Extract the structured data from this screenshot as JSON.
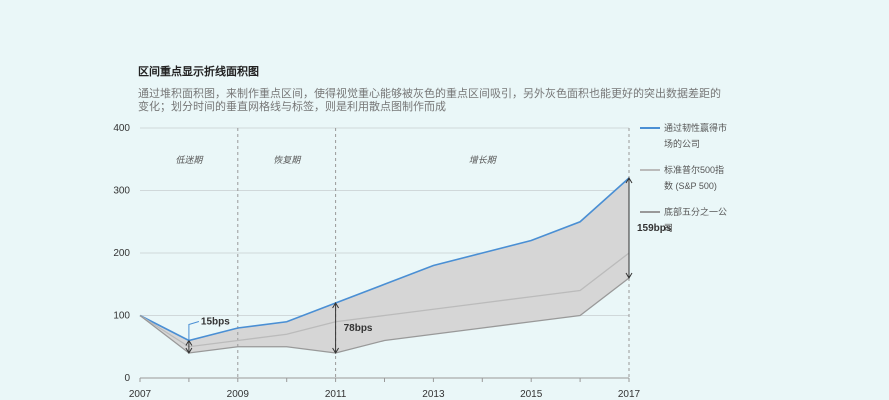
{
  "page": {
    "title": "区间重点显示折线面积图",
    "subtitle": "通过堆积面积图，来制作重点区间，使得视觉重心能够被灰色的重点区间吸引，另外灰色面积也能更好的突出数据差距的变化；划分时间的垂直网格线与标签，则是利用散点图制作而成"
  },
  "chart_data": {
    "type": "area",
    "x": [
      2007,
      2008,
      2009,
      2010,
      2011,
      2012,
      2013,
      2014,
      2015,
      2016,
      2017
    ],
    "xticks": [
      "2007",
      "2009",
      "2011",
      "2013",
      "2015",
      "2017"
    ],
    "yticks": [
      "0",
      "100",
      "200",
      "300",
      "400"
    ],
    "xlim": [
      2007,
      2017
    ],
    "ylim": [
      0,
      400
    ],
    "grid": true,
    "legend": "right",
    "series": [
      {
        "name": "通过韧性赢得市场的公司",
        "color": "#4a8fd4",
        "values": [
          100,
          60,
          80,
          90,
          120,
          150,
          180,
          200,
          220,
          250,
          320
        ]
      },
      {
        "name": "标准普尔500指数 (S&P 500)",
        "color": "#bbbbbb",
        "values": [
          100,
          50,
          60,
          70,
          90,
          100,
          110,
          120,
          130,
          140,
          200
        ]
      },
      {
        "name": "底部五分之一公司",
        "color": "#999999",
        "values": [
          100,
          40,
          50,
          50,
          40,
          60,
          70,
          80,
          90,
          100,
          160
        ]
      }
    ],
    "phases": [
      {
        "label": "低迷期",
        "start": 2007,
        "end": 2009
      },
      {
        "label": "恢复期",
        "start": 2009,
        "end": 2011
      },
      {
        "label": "增长期",
        "start": 2011,
        "end": 2017
      }
    ],
    "annotations": [
      {
        "x": 2008,
        "top": 60,
        "bottom": 40,
        "label": "15bps"
      },
      {
        "x": 2011,
        "top": 120,
        "bottom": 40,
        "label": "78bps"
      },
      {
        "x": 2017,
        "top": 320,
        "bottom": 160,
        "label": "159bps"
      }
    ]
  }
}
